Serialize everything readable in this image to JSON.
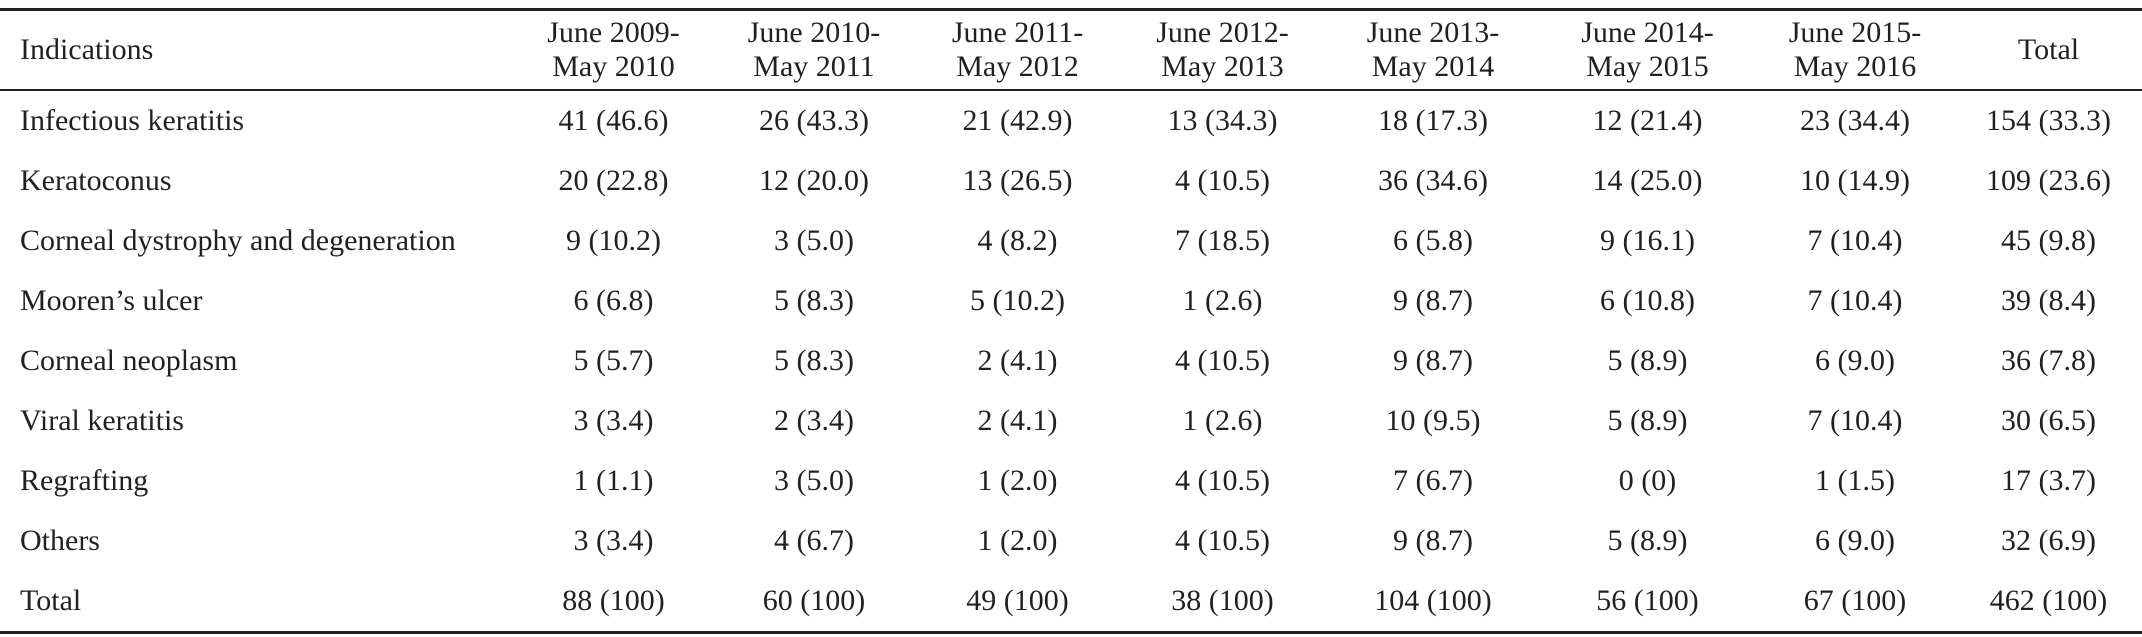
{
  "table": {
    "header": [
      [
        "Indications"
      ],
      [
        "June 2009-",
        "May 2010"
      ],
      [
        "June 2010-",
        "May 2011"
      ],
      [
        "June 2011-",
        "May 2012"
      ],
      [
        "June 2012-",
        "May 2013"
      ],
      [
        "June 2013-",
        "May 2014"
      ],
      [
        "June 2014-",
        "May 2015"
      ],
      [
        "June 2015-",
        "May 2016"
      ],
      [
        "Total"
      ]
    ],
    "rows": [
      [
        "Infectious keratitis",
        "41 (46.6)",
        "26 (43.3)",
        "21 (42.9)",
        "13 (34.3)",
        "18 (17.3)",
        "12 (21.4)",
        "23 (34.4)",
        "154 (33.3)"
      ],
      [
        "Keratoconus",
        "20 (22.8)",
        "12 (20.0)",
        "13 (26.5)",
        "4 (10.5)",
        "36 (34.6)",
        "14 (25.0)",
        "10 (14.9)",
        "109 (23.6)"
      ],
      [
        "Corneal dystrophy and degeneration",
        "9 (10.2)",
        "3 (5.0)",
        "4 (8.2)",
        "7 (18.5)",
        "6 (5.8)",
        "9 (16.1)",
        "7 (10.4)",
        "45 (9.8)"
      ],
      [
        "Mooren’s ulcer",
        "6 (6.8)",
        "5 (8.3)",
        "5 (10.2)",
        "1 (2.6)",
        "9 (8.7)",
        "6 (10.8)",
        "7 (10.4)",
        "39 (8.4)"
      ],
      [
        "Corneal neoplasm",
        "5 (5.7)",
        "5 (8.3)",
        "2 (4.1)",
        "4 (10.5)",
        "9 (8.7)",
        "5 (8.9)",
        "6 (9.0)",
        "36 (7.8)"
      ],
      [
        "Viral keratitis",
        "3 (3.4)",
        "2 (3.4)",
        "2 (4.1)",
        "1 (2.6)",
        "10 (9.5)",
        "5 (8.9)",
        "7 (10.4)",
        "30 (6.5)"
      ],
      [
        "Regrafting",
        "1 (1.1)",
        "3 (5.0)",
        "1 (2.0)",
        "4 (10.5)",
        "7 (6.7)",
        "0 (0)",
        "1 (1.5)",
        "17 (3.7)"
      ],
      [
        "Others",
        "3 (3.4)",
        "4 (6.7)",
        "1 (2.0)",
        "4 (10.5)",
        "9 (8.7)",
        "5 (8.9)",
        "6 (9.0)",
        "32 (6.9)"
      ],
      [
        "Total",
        "88 (100)",
        "60 (100)",
        "49 (100)",
        "38 (100)",
        "104 (100)",
        "56 (100)",
        "67 (100)",
        "462 (100)"
      ]
    ]
  }
}
